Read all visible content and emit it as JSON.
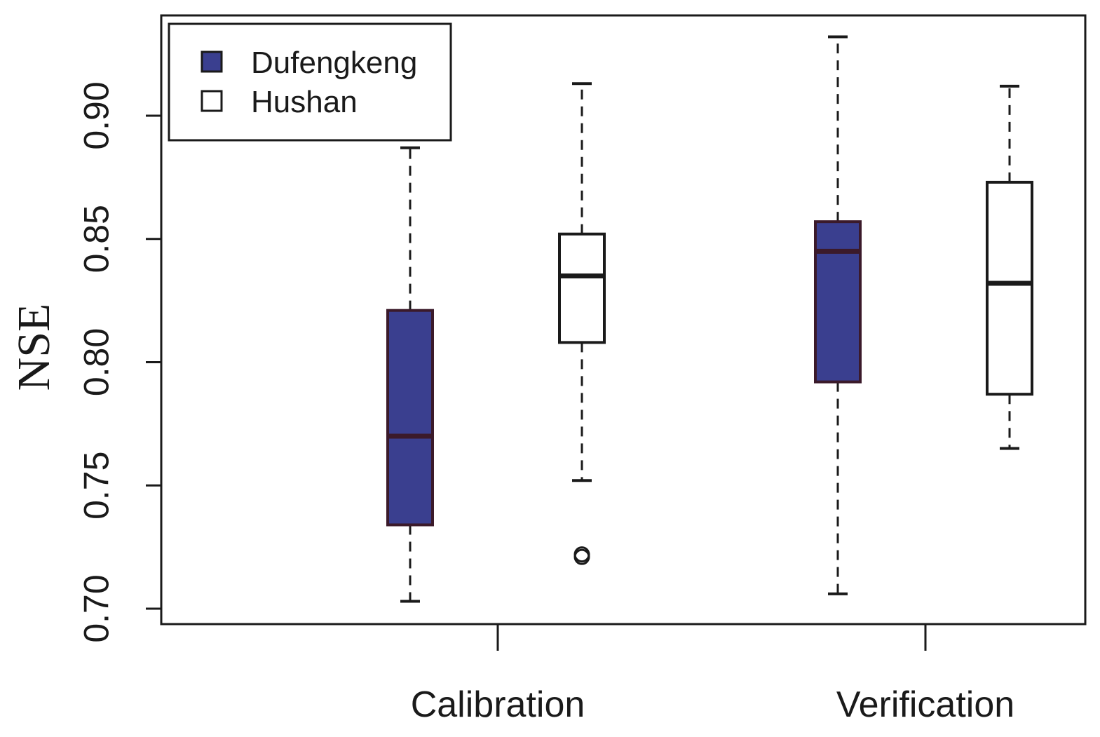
{
  "chart_data": {
    "type": "box",
    "title": "",
    "xlabel": "",
    "ylabel": "NSE",
    "ylim": [
      0.695,
      0.942
    ],
    "yticks": [
      0.7,
      0.75,
      0.8,
      0.85,
      0.9
    ],
    "ytick_labels": [
      "0.70",
      "0.75",
      "0.80",
      "0.85",
      "0.90"
    ],
    "categories": [
      "Calibration",
      "Verification"
    ],
    "legend": {
      "position": "top-left",
      "entries": [
        {
          "name": "Dufengkeng",
          "color": "#3a3f8f"
        },
        {
          "name": "Hushan",
          "color": "#ffffff"
        }
      ]
    },
    "series": [
      {
        "name": "Dufengkeng",
        "color": "#3a3f8f",
        "boxes": [
          {
            "category": "Calibration",
            "whisker_low": 0.703,
            "q1": 0.734,
            "median": 0.77,
            "q3": 0.821,
            "whisker_high": 0.887,
            "outliers": []
          },
          {
            "category": "Verification",
            "whisker_low": 0.706,
            "q1": 0.792,
            "median": 0.845,
            "q3": 0.857,
            "whisker_high": 0.932,
            "outliers": []
          }
        ]
      },
      {
        "name": "Hushan",
        "color": "#ffffff",
        "boxes": [
          {
            "category": "Calibration",
            "whisker_low": 0.752,
            "q1": 0.808,
            "median": 0.835,
            "q3": 0.852,
            "whisker_high": 0.913,
            "outliers": [
              0.722,
              0.721
            ]
          },
          {
            "category": "Verification",
            "whisker_low": 0.765,
            "q1": 0.787,
            "median": 0.832,
            "q3": 0.873,
            "whisker_high": 0.912,
            "outliers": []
          }
        ]
      }
    ]
  }
}
